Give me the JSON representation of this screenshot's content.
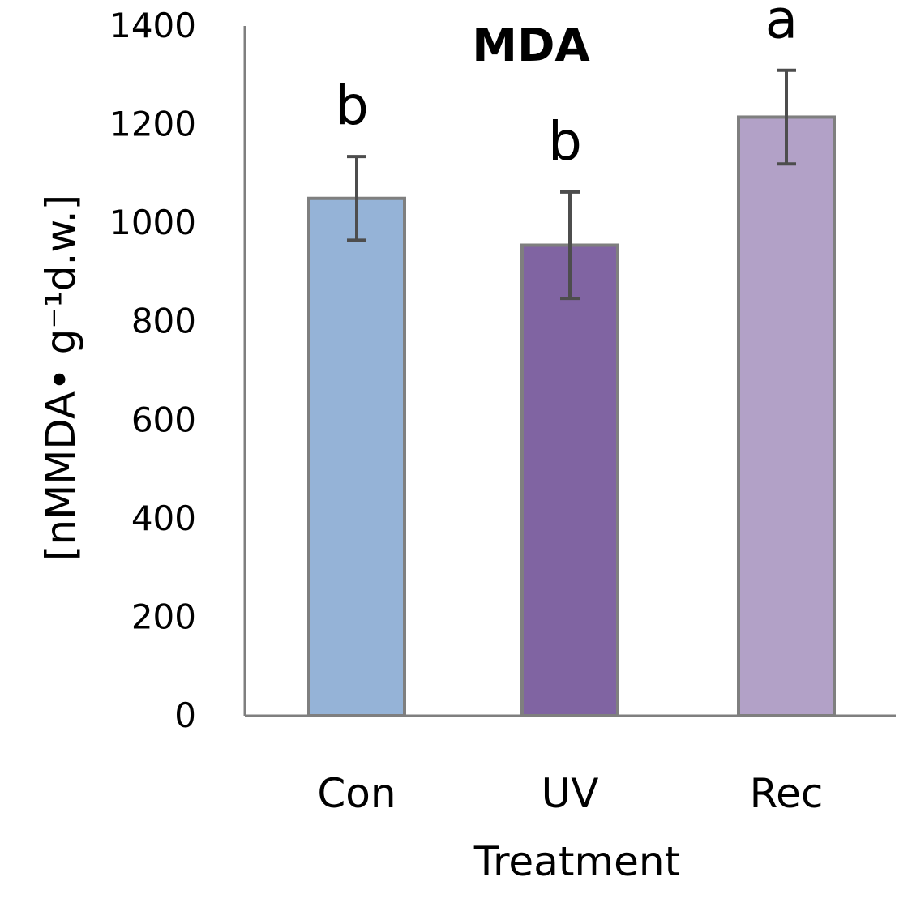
{
  "chart_data": {
    "type": "bar",
    "title": "MDA",
    "xlabel": "Treatment",
    "ylabel": "[nMMDA• g⁻¹d.w.]",
    "categories": [
      "Con",
      "UV",
      "Rec"
    ],
    "values": [
      1050,
      955,
      1215
    ],
    "error": [
      85,
      108,
      95
    ],
    "significance": [
      "b",
      "b",
      "a"
    ],
    "ylim": [
      0,
      1400
    ],
    "yticks": [
      0,
      200,
      400,
      600,
      800,
      1000,
      1200,
      1400
    ],
    "ytick_labels": [
      "0",
      "200",
      "400",
      "600",
      "800",
      "1000",
      "1200",
      "1400"
    ],
    "grid": false,
    "colors": [
      "#95b3d7",
      "#8064a2",
      "#b2a1c7"
    ],
    "edge_color": "#7f7f7f",
    "error_color": "#4d4d4d"
  }
}
